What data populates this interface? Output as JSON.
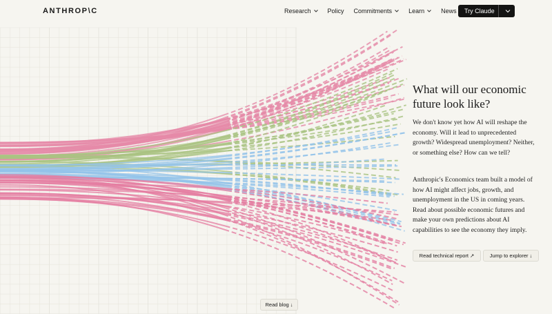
{
  "nav": {
    "logo": "ANTHROP\\C",
    "links": [
      "Research",
      "Policy",
      "Commitments",
      "Learn",
      "News"
    ],
    "cta": "Try Claude"
  },
  "hero": {
    "title": "What will our economic future look like?",
    "paragraphs": [
      "We don't know yet how AI will reshape the economy. Will it lead to unprecedented growth? Widespread unemployment? Neither, or something else? How can we tell?",
      "Anthropic's Economics team built a model of how AI might affect jobs, growth, and unemployment in the US in coming years. Read about possible economic futures and make your own predictions about AI capabilities to see the economy they imply."
    ],
    "buttons": [
      "Read technical report ↗",
      "Jump to explorer ↓"
    ],
    "blog_button": "Read blog ↓"
  }
}
